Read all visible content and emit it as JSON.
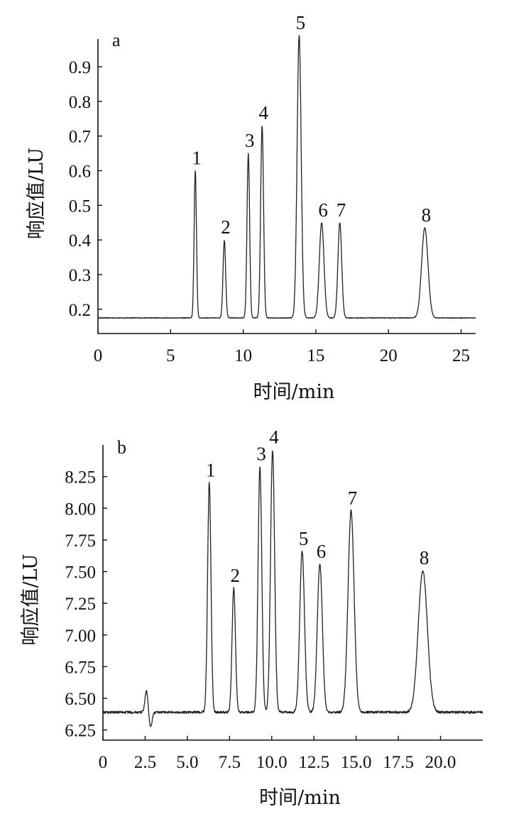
{
  "chart_data": [
    {
      "type": "line",
      "panel_label": "a",
      "xlabel": "时间/min",
      "ylabel": "响应值/LU",
      "xlim": [
        0,
        26
      ],
      "ylim": [
        0.13,
        0.98
      ],
      "xticks": [
        0,
        5,
        10,
        15,
        20,
        25
      ],
      "xtick_labels": [
        "0",
        "5",
        "10",
        "15",
        "20",
        "25"
      ],
      "yticks": [
        0.2,
        0.3,
        0.4,
        0.5,
        0.6,
        0.7,
        0.8,
        0.9
      ],
      "ytick_labels": [
        "0.2",
        "0.3",
        "0.4",
        "0.5",
        "0.6",
        "0.7",
        "0.8",
        "0.9"
      ],
      "baseline": 0.175,
      "grid": false,
      "peaks": [
        {
          "label": "1",
          "x": 6.7,
          "y": 0.6,
          "width": 0.08
        },
        {
          "label": "2",
          "x": 8.7,
          "y": 0.4,
          "width": 0.09
        },
        {
          "label": "3",
          "x": 10.35,
          "y": 0.65,
          "width": 0.09
        },
        {
          "label": "4",
          "x": 11.3,
          "y": 0.73,
          "width": 0.1
        },
        {
          "label": "5",
          "x": 13.85,
          "y": 0.99,
          "width": 0.14
        },
        {
          "label": "6",
          "x": 15.4,
          "y": 0.45,
          "width": 0.16
        },
        {
          "label": "7",
          "x": 16.65,
          "y": 0.45,
          "width": 0.13
        },
        {
          "label": "8",
          "x": 22.5,
          "y": 0.435,
          "width": 0.22
        }
      ]
    },
    {
      "type": "line",
      "panel_label": "b",
      "xlabel": "时间/min",
      "ylabel": "响应值/LU",
      "xlim": [
        0,
        22.5
      ],
      "ylim": [
        6.17,
        8.5
      ],
      "xticks": [
        0,
        2.5,
        5.0,
        7.5,
        10.0,
        12.5,
        15.0,
        17.5,
        20.0
      ],
      "xtick_labels": [
        "0",
        "2.5",
        "5.0",
        "7.5",
        "10.0",
        "12.5",
        "15.0",
        "17.5",
        "20.0"
      ],
      "yticks": [
        6.25,
        6.5,
        6.75,
        7.0,
        7.25,
        7.5,
        7.75,
        8.0,
        8.25
      ],
      "ytick_labels": [
        "6.25",
        "6.50",
        "6.75",
        "7.00",
        "7.25",
        "7.50",
        "7.75",
        "8.00",
        "8.25"
      ],
      "baseline": 6.39,
      "grid": false,
      "disturbance": {
        "x": 2.7,
        "up": 6.56,
        "down": 6.27
      },
      "peaks": [
        {
          "label": "1",
          "x": 6.3,
          "y": 8.2,
          "width": 0.1
        },
        {
          "label": "2",
          "x": 7.75,
          "y": 7.37,
          "width": 0.1
        },
        {
          "label": "3",
          "x": 9.3,
          "y": 8.33,
          "width": 0.11
        },
        {
          "label": "4",
          "x": 10.05,
          "y": 8.46,
          "width": 0.12
        },
        {
          "label": "5",
          "x": 11.8,
          "y": 7.66,
          "width": 0.14
        },
        {
          "label": "6",
          "x": 12.85,
          "y": 7.56,
          "width": 0.15
        },
        {
          "label": "7",
          "x": 14.7,
          "y": 7.98,
          "width": 0.18
        },
        {
          "label": "8",
          "x": 18.95,
          "y": 7.51,
          "width": 0.27
        }
      ]
    }
  ]
}
